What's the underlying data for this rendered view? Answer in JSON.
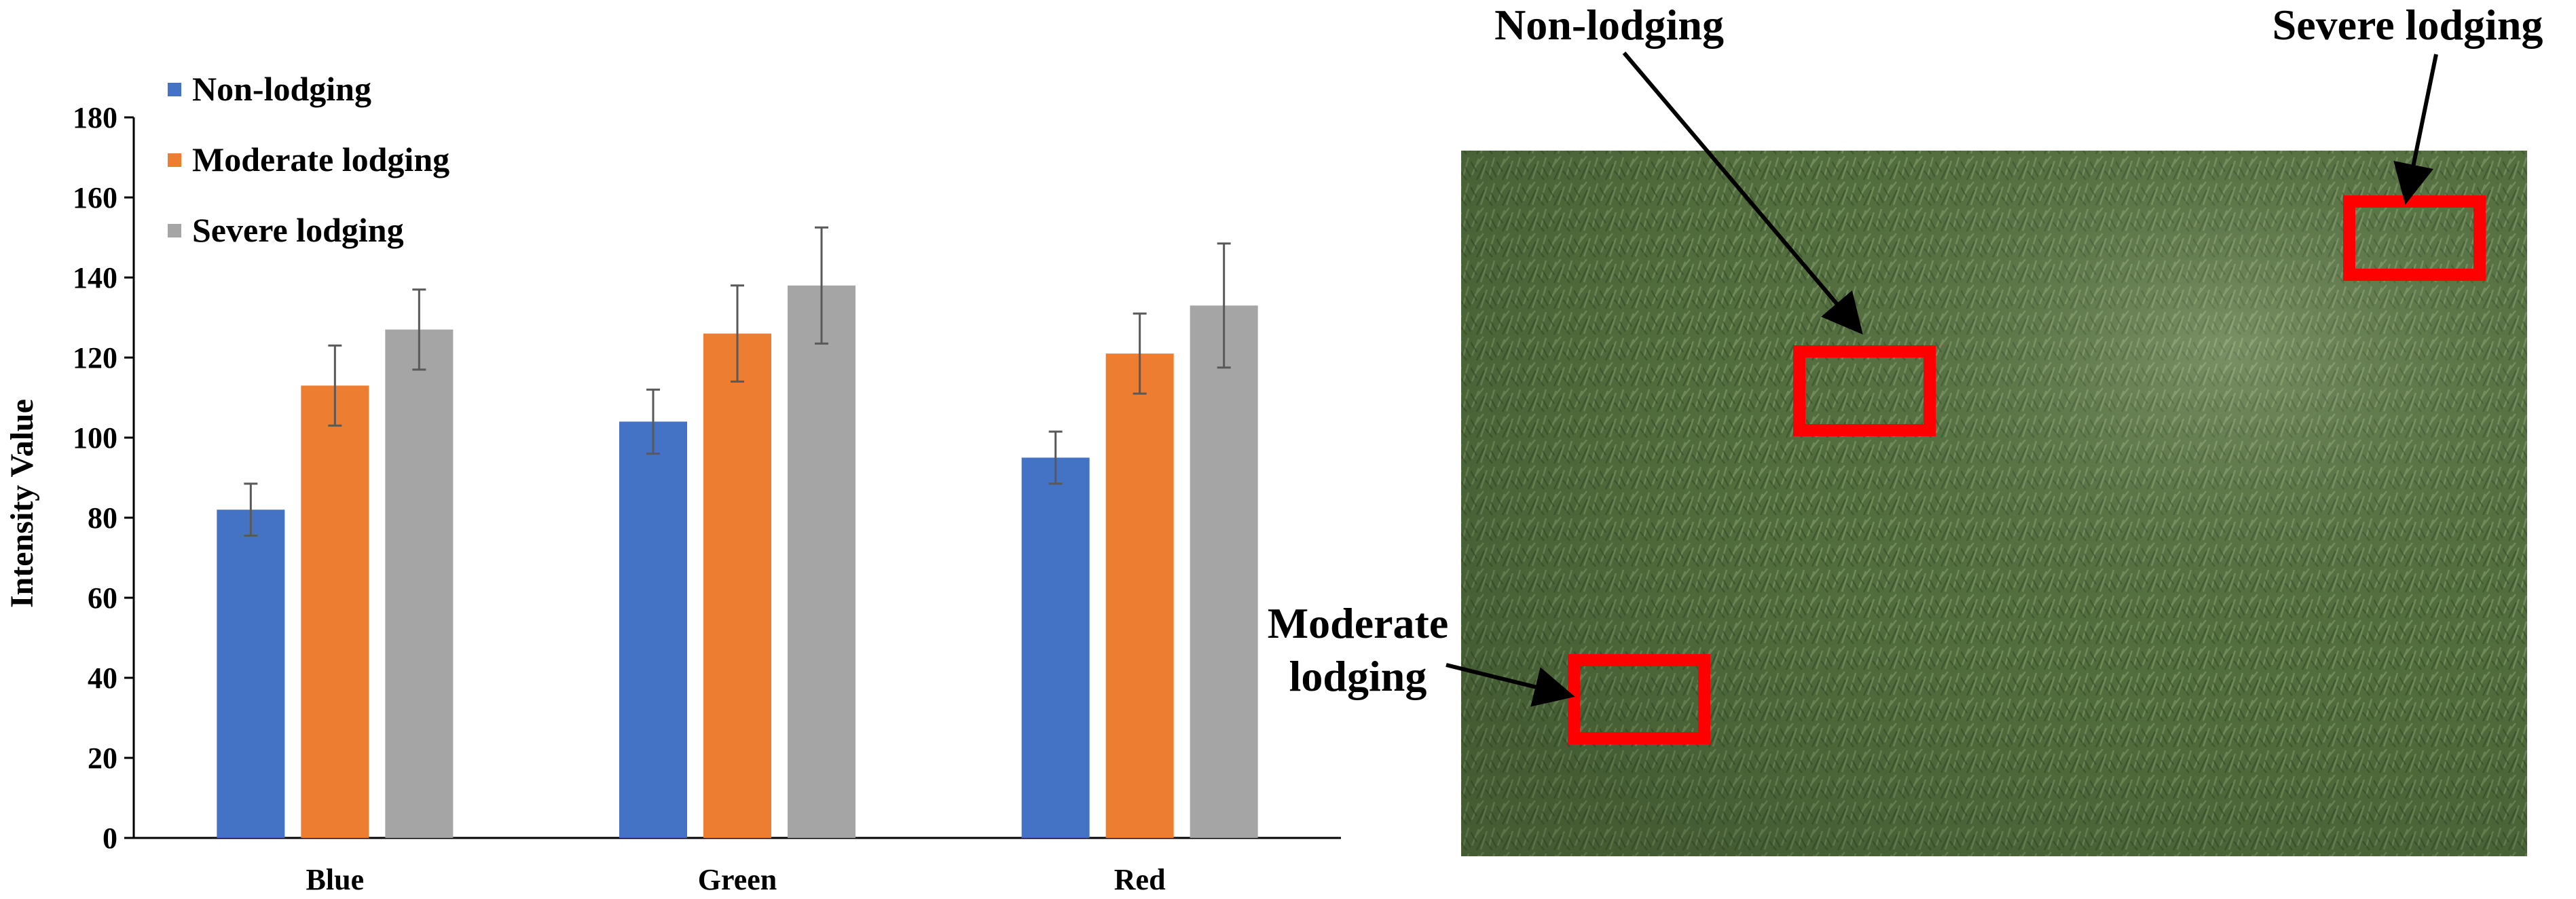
{
  "chart_data": {
    "type": "bar",
    "categories": [
      "Blue",
      "Green",
      "Red"
    ],
    "series": [
      {
        "name": "Non-lodging",
        "color": "#4472C4",
        "values": [
          82,
          104,
          95
        ],
        "errors": [
          6.5,
          8,
          6.5
        ]
      },
      {
        "name": "Moderate lodging",
        "color": "#ED7D31",
        "values": [
          113,
          126,
          121
        ],
        "errors": [
          10,
          12,
          10
        ]
      },
      {
        "name": "Severe lodging",
        "color": "#A5A5A5",
        "values": [
          127,
          138,
          133
        ],
        "errors": [
          10,
          14.5,
          15.5
        ]
      }
    ],
    "title": "",
    "xlabel": "",
    "ylabel": "Intensity Value",
    "ylim": [
      0,
      180
    ],
    "yticks": [
      0,
      20,
      40,
      60,
      80,
      100,
      120,
      140,
      160,
      180
    ],
    "grid": false,
    "legend_position": "top-left",
    "error_bar_color": "#595959"
  },
  "photo": {
    "labels": {
      "non_lodging": "Non-lodging",
      "severe_lodging": "Severe lodging",
      "moderate_lodging_line1": "Moderate",
      "moderate_lodging_line2": "lodging"
    },
    "marker_color": "#FF0000",
    "canopy_color": "#4F6B3C"
  }
}
